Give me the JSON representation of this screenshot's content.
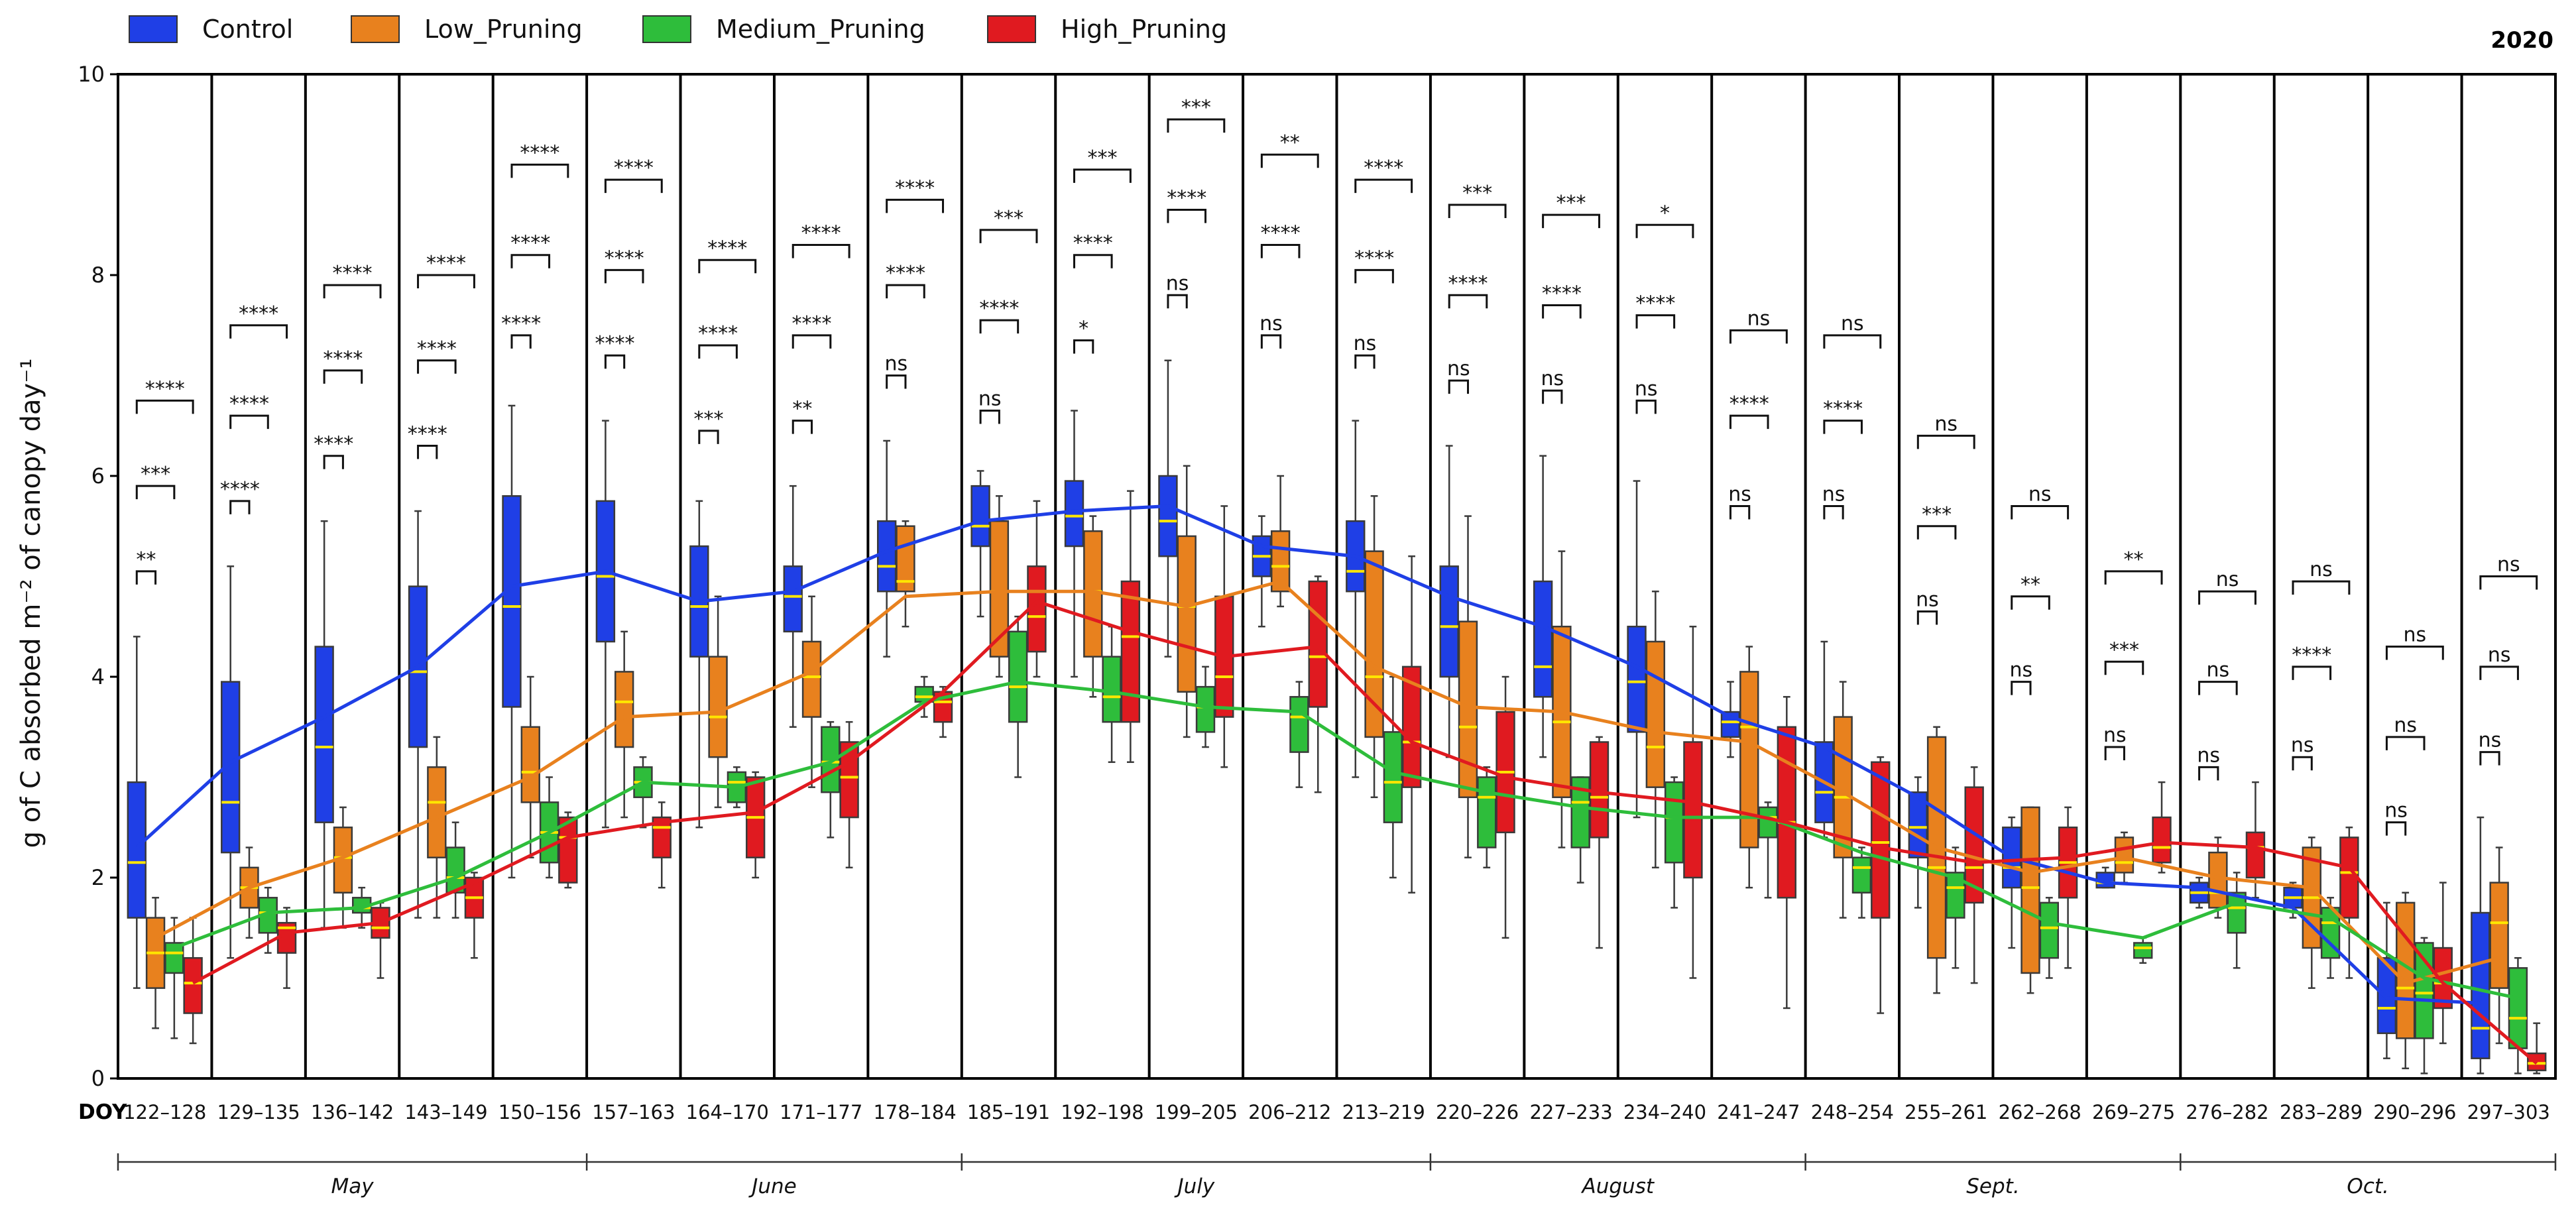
{
  "chart_data": {
    "type": "box",
    "year": "2020",
    "ylabel": "g of C absorbed m⁻² of canopy day⁻¹",
    "ylim": [
      0,
      10
    ],
    "yticks": [
      "0",
      "2",
      "4",
      "6",
      "8",
      "10"
    ],
    "doy_axis_label": "DOY",
    "legend": [
      {
        "name": "Control",
        "color": "#1f3fe6"
      },
      {
        "name": "Low_Pruning",
        "color": "#e8811e"
      },
      {
        "name": "Medium_Pruning",
        "color": "#2ebd3b"
      },
      {
        "name": "High_Pruning",
        "color": "#e01a20"
      }
    ],
    "months": [
      {
        "label": "May",
        "start": 0,
        "end": 4
      },
      {
        "label": "June",
        "start": 5,
        "end": 8
      },
      {
        "label": "July",
        "start": 9,
        "end": 13
      },
      {
        "label": "August",
        "start": 14,
        "end": 17
      },
      {
        "label": "Sept.",
        "start": 18,
        "end": 21
      },
      {
        "label": "Oct.",
        "start": 22,
        "end": 25
      }
    ],
    "categories": [
      "122–128",
      "129–135",
      "136–142",
      "143–149",
      "150–156",
      "157–163",
      "164–170",
      "171–177",
      "178–184",
      "185–191",
      "192–198",
      "199–205",
      "206–212",
      "213–219",
      "220–226",
      "227–233",
      "234–240",
      "241–247",
      "248–254",
      "255–261",
      "262–268",
      "269–275",
      "276–282",
      "283–289",
      "290–296",
      "297–303"
    ],
    "series": [
      {
        "name": "Control",
        "color": "#1f3fe6",
        "means": [
          2.3,
          3.15,
          3.6,
          4.1,
          4.9,
          5.05,
          4.75,
          4.85,
          5.25,
          5.55,
          5.65,
          5.7,
          5.3,
          5.2,
          4.8,
          4.5,
          4.1,
          3.6,
          3.3,
          2.8,
          2.2,
          1.95,
          1.9,
          1.7,
          0.8,
          0.75
        ],
        "boxes": [
          [
            0.9,
            1.6,
            2.15,
            2.95,
            4.4
          ],
          [
            1.2,
            2.25,
            2.75,
            3.95,
            5.1
          ],
          [
            1.5,
            2.55,
            3.3,
            4.3,
            5.55
          ],
          [
            1.6,
            3.3,
            4.05,
            4.9,
            5.65
          ],
          [
            2.0,
            3.7,
            4.7,
            5.8,
            6.7
          ],
          [
            2.5,
            4.35,
            5.0,
            5.75,
            6.55
          ],
          [
            2.5,
            4.2,
            4.7,
            5.3,
            5.75
          ],
          [
            3.5,
            4.45,
            4.8,
            5.1,
            5.9
          ],
          [
            4.2,
            4.85,
            5.1,
            5.55,
            6.35
          ],
          [
            4.6,
            5.3,
            5.5,
            5.9,
            6.05
          ],
          [
            4.0,
            5.3,
            5.6,
            5.95,
            6.65
          ],
          [
            4.2,
            5.2,
            5.55,
            6.0,
            7.15
          ],
          [
            4.5,
            5.0,
            5.2,
            5.4,
            5.6
          ],
          [
            3.0,
            4.85,
            5.05,
            5.55,
            6.55
          ],
          [
            3.2,
            4.0,
            4.5,
            5.1,
            6.3
          ],
          [
            3.2,
            3.8,
            4.1,
            4.95,
            6.2
          ],
          [
            2.6,
            3.45,
            3.95,
            4.5,
            5.95
          ],
          [
            3.2,
            3.4,
            3.55,
            3.65,
            3.95
          ],
          [
            2.4,
            2.55,
            2.85,
            3.35,
            4.35
          ],
          [
            1.7,
            2.2,
            2.5,
            2.85,
            3.0
          ],
          [
            1.3,
            1.9,
            2.1,
            2.5,
            2.6
          ],
          [
            1.9,
            1.9,
            1.95,
            2.05,
            2.1
          ],
          [
            1.7,
            1.75,
            1.85,
            1.95,
            2.0
          ],
          [
            1.6,
            1.7,
            1.8,
            1.9,
            1.95
          ],
          [
            0.2,
            0.45,
            0.7,
            1.2,
            1.75
          ],
          [
            0.05,
            0.2,
            0.5,
            1.65,
            2.6
          ]
        ]
      },
      {
        "name": "Low_Pruning",
        "color": "#e8811e",
        "means": [
          1.4,
          1.9,
          2.2,
          2.6,
          3.0,
          3.6,
          3.65,
          4.05,
          4.8,
          4.85,
          4.85,
          4.7,
          4.95,
          4.1,
          3.7,
          3.65,
          3.45,
          3.35,
          2.85,
          2.3,
          2.05,
          2.2,
          2.0,
          1.9,
          0.95,
          1.2
        ],
        "boxes": [
          [
            0.5,
            0.9,
            1.25,
            1.6,
            1.8
          ],
          [
            1.4,
            1.7,
            1.9,
            2.1,
            2.3
          ],
          [
            1.5,
            1.85,
            2.2,
            2.5,
            2.7
          ],
          [
            1.6,
            2.2,
            2.75,
            3.1,
            3.4
          ],
          [
            2.2,
            2.75,
            3.05,
            3.5,
            4.0
          ],
          [
            2.6,
            3.3,
            3.75,
            4.05,
            4.45
          ],
          [
            2.7,
            3.2,
            3.6,
            4.2,
            4.8
          ],
          [
            2.9,
            3.6,
            4.0,
            4.35,
            4.8
          ],
          [
            4.5,
            4.85,
            4.95,
            5.5,
            5.55
          ],
          [
            4.0,
            4.2,
            4.85,
            5.55,
            5.8
          ],
          [
            3.8,
            4.2,
            4.85,
            5.45,
            5.6
          ],
          [
            3.4,
            3.85,
            4.7,
            5.4,
            6.1
          ],
          [
            4.7,
            4.85,
            5.1,
            5.45,
            6.0
          ],
          [
            2.8,
            3.4,
            4.0,
            5.25,
            5.8
          ],
          [
            2.2,
            2.8,
            3.5,
            4.55,
            5.6
          ],
          [
            2.3,
            2.8,
            3.55,
            4.5,
            5.25
          ],
          [
            2.1,
            2.9,
            3.3,
            4.35,
            4.85
          ],
          [
            1.9,
            2.3,
            3.5,
            4.05,
            4.3
          ],
          [
            1.6,
            2.2,
            2.8,
            3.6,
            3.95
          ],
          [
            0.85,
            1.2,
            2.1,
            3.4,
            3.5
          ],
          [
            0.85,
            1.05,
            1.9,
            2.7,
            2.7
          ],
          [
            1.95,
            2.05,
            2.15,
            2.4,
            2.45
          ],
          [
            1.6,
            1.7,
            1.85,
            2.25,
            2.4
          ],
          [
            0.9,
            1.3,
            1.8,
            2.3,
            2.4
          ],
          [
            0.1,
            0.4,
            0.9,
            1.75,
            1.85
          ],
          [
            0.35,
            0.9,
            1.55,
            1.95,
            2.3
          ]
        ]
      },
      {
        "name": "Medium_Pruning",
        "color": "#2ebd3b",
        "means": [
          1.3,
          1.65,
          1.7,
          2.0,
          2.45,
          2.95,
          2.9,
          3.15,
          3.75,
          3.95,
          3.85,
          3.7,
          3.65,
          3.05,
          2.85,
          2.7,
          2.6,
          2.6,
          2.25,
          2.0,
          1.55,
          1.4,
          1.75,
          1.6,
          1.0,
          0.8
        ],
        "boxes": [
          [
            0.4,
            1.05,
            1.25,
            1.35,
            1.6
          ],
          [
            1.25,
            1.45,
            1.65,
            1.8,
            1.9
          ],
          [
            1.5,
            1.65,
            1.7,
            1.8,
            1.9
          ],
          [
            1.6,
            1.85,
            2.0,
            2.3,
            2.55
          ],
          [
            2.0,
            2.15,
            2.45,
            2.75,
            3.0
          ],
          [
            2.5,
            2.8,
            2.95,
            3.1,
            3.2
          ],
          [
            2.7,
            2.75,
            2.95,
            3.05,
            3.1
          ],
          [
            2.4,
            2.85,
            3.15,
            3.5,
            3.55
          ],
          [
            3.6,
            3.75,
            3.8,
            3.9,
            4.0
          ],
          [
            3.0,
            3.55,
            3.9,
            4.45,
            4.6
          ],
          [
            3.15,
            3.55,
            3.8,
            4.2,
            4.5
          ],
          [
            3.3,
            3.45,
            3.7,
            3.9,
            4.1
          ],
          [
            2.9,
            3.25,
            3.6,
            3.8,
            3.95
          ],
          [
            2.0,
            2.55,
            2.95,
            3.45,
            4.0
          ],
          [
            2.1,
            2.3,
            2.8,
            3.0,
            3.1
          ],
          [
            1.95,
            2.3,
            2.75,
            3.0,
            3.0
          ],
          [
            1.7,
            2.15,
            2.6,
            2.95,
            3.0
          ],
          [
            1.8,
            2.4,
            2.6,
            2.7,
            2.75
          ],
          [
            1.6,
            1.85,
            2.1,
            2.2,
            2.3
          ],
          [
            1.1,
            1.6,
            1.9,
            2.05,
            2.3
          ],
          [
            1.0,
            1.2,
            1.5,
            1.75,
            1.8
          ],
          [
            1.15,
            1.2,
            1.3,
            1.35,
            1.4
          ],
          [
            1.1,
            1.45,
            1.7,
            1.85,
            2.05
          ],
          [
            1.0,
            1.2,
            1.55,
            1.7,
            1.8
          ],
          [
            0.05,
            0.4,
            0.85,
            1.35,
            1.4
          ],
          [
            0.05,
            0.3,
            0.6,
            1.1,
            1.2
          ]
        ]
      },
      {
        "name": "High_Pruning",
        "color": "#e01a20",
        "means": [
          0.95,
          1.45,
          1.55,
          1.95,
          2.4,
          2.55,
          2.65,
          3.15,
          3.85,
          4.75,
          4.45,
          4.2,
          4.3,
          3.35,
          3.0,
          2.85,
          2.75,
          2.55,
          2.3,
          2.15,
          2.2,
          2.35,
          2.3,
          2.1,
          0.95,
          0.15
        ],
        "boxes": [
          [
            0.35,
            0.65,
            0.95,
            1.2,
            1.6
          ],
          [
            0.9,
            1.25,
            1.5,
            1.55,
            1.7
          ],
          [
            1.0,
            1.4,
            1.5,
            1.7,
            1.75
          ],
          [
            1.2,
            1.6,
            1.8,
            2.0,
            2.05
          ],
          [
            1.9,
            1.95,
            2.4,
            2.6,
            2.65
          ],
          [
            1.9,
            2.2,
            2.5,
            2.6,
            2.75
          ],
          [
            2.0,
            2.2,
            2.6,
            3.0,
            3.05
          ],
          [
            2.1,
            2.6,
            3.0,
            3.35,
            3.55
          ],
          [
            3.4,
            3.55,
            3.75,
            3.85,
            3.9
          ],
          [
            4.0,
            4.25,
            4.6,
            5.1,
            5.75
          ],
          [
            3.15,
            3.55,
            4.4,
            4.95,
            5.85
          ],
          [
            3.1,
            3.6,
            4.0,
            4.8,
            5.7
          ],
          [
            2.85,
            3.7,
            4.2,
            4.95,
            5.0
          ],
          [
            1.85,
            2.9,
            3.35,
            4.1,
            5.2
          ],
          [
            1.4,
            2.45,
            3.05,
            3.65,
            4.0
          ],
          [
            1.3,
            2.4,
            2.8,
            3.35,
            3.4
          ],
          [
            1.0,
            2.0,
            2.6,
            3.35,
            4.5
          ],
          [
            0.7,
            1.8,
            2.55,
            3.5,
            3.8
          ],
          [
            0.65,
            1.6,
            2.35,
            3.15,
            3.2
          ],
          [
            0.95,
            1.75,
            2.1,
            2.9,
            3.1
          ],
          [
            1.1,
            1.8,
            2.15,
            2.5,
            2.7
          ],
          [
            2.05,
            2.15,
            2.3,
            2.6,
            2.95
          ],
          [
            1.8,
            2.0,
            2.3,
            2.45,
            2.95
          ],
          [
            1.0,
            1.6,
            2.05,
            2.4,
            2.5
          ],
          [
            0.35,
            0.7,
            0.95,
            1.3,
            1.95
          ],
          [
            0.05,
            0.08,
            0.15,
            0.25,
            0.55
          ]
        ]
      }
    ],
    "significance": [
      {
        "labels": [
          "**",
          "***",
          "****"
        ],
        "y": [
          5.05,
          5.9,
          6.75
        ]
      },
      {
        "labels": [
          "****",
          "****",
          "****"
        ],
        "y": [
          5.75,
          6.6,
          7.5
        ]
      },
      {
        "labels": [
          "****",
          "****",
          "****"
        ],
        "y": [
          6.2,
          7.05,
          7.9
        ]
      },
      {
        "labels": [
          "****",
          "****",
          "****"
        ],
        "y": [
          6.3,
          7.15,
          8.0
        ]
      },
      {
        "labels": [
          "****",
          "****",
          "****"
        ],
        "y": [
          7.4,
          8.2,
          9.1
        ]
      },
      {
        "labels": [
          "****",
          "****",
          "****"
        ],
        "y": [
          7.2,
          8.05,
          8.95
        ]
      },
      {
        "labels": [
          "***",
          "****",
          "****"
        ],
        "y": [
          6.45,
          7.3,
          8.15
        ]
      },
      {
        "labels": [
          "**",
          "****",
          "****"
        ],
        "y": [
          6.55,
          7.4,
          8.3
        ]
      },
      {
        "labels": [
          "ns",
          "****",
          "****"
        ],
        "y": [
          7.0,
          7.9,
          8.75
        ]
      },
      {
        "labels": [
          "ns",
          "****",
          "***"
        ],
        "y": [
          6.65,
          7.55,
          8.45
        ]
      },
      {
        "labels": [
          "*",
          "****",
          "***"
        ],
        "y": [
          7.35,
          8.2,
          9.05
        ]
      },
      {
        "labels": [
          "ns",
          "****",
          "***"
        ],
        "y": [
          7.8,
          8.65,
          9.55
        ]
      },
      {
        "labels": [
          "ns",
          "****",
          "**"
        ],
        "y": [
          7.4,
          8.3,
          9.2
        ]
      },
      {
        "labels": [
          "ns",
          "****",
          "****"
        ],
        "y": [
          7.2,
          8.05,
          8.95
        ]
      },
      {
        "labels": [
          "ns",
          "****",
          "***"
        ],
        "y": [
          6.95,
          7.8,
          8.7
        ]
      },
      {
        "labels": [
          "ns",
          "****",
          "***"
        ],
        "y": [
          6.85,
          7.7,
          8.6
        ]
      },
      {
        "labels": [
          "ns",
          "****",
          "*"
        ],
        "y": [
          6.75,
          7.6,
          8.5
        ]
      },
      {
        "labels": [
          "ns",
          "****",
          "ns"
        ],
        "y": [
          5.7,
          6.6,
          7.45
        ]
      },
      {
        "labels": [
          "ns",
          "****",
          "ns"
        ],
        "y": [
          5.7,
          6.55,
          7.4
        ]
      },
      {
        "labels": [
          "ns",
          "***",
          "ns"
        ],
        "y": [
          4.65,
          5.5,
          6.4
        ]
      },
      {
        "labels": [
          "ns",
          "**",
          "ns"
        ],
        "y": [
          3.95,
          4.8,
          5.7
        ]
      },
      {
        "labels": [
          "ns",
          "***",
          "**"
        ],
        "y": [
          3.3,
          4.15,
          5.05
        ]
      },
      {
        "labels": [
          "ns",
          "ns",
          "ns"
        ],
        "y": [
          3.1,
          3.95,
          4.85
        ]
      },
      {
        "labels": [
          "ns",
          "****",
          "ns"
        ],
        "y": [
          3.2,
          4.1,
          4.95
        ]
      },
      {
        "labels": [
          "ns",
          "ns",
          "ns"
        ],
        "y": [
          2.55,
          3.4,
          4.3
        ]
      },
      {
        "labels": [
          "ns",
          "ns",
          "ns"
        ],
        "y": [
          3.25,
          4.1,
          5.0
        ]
      }
    ]
  }
}
